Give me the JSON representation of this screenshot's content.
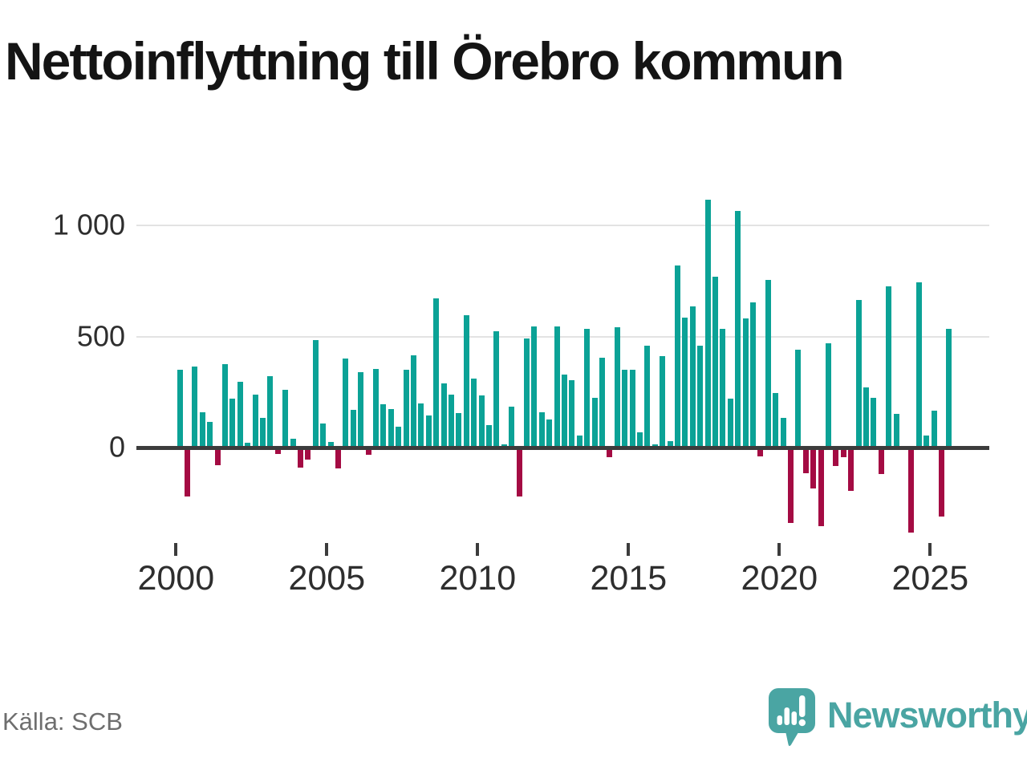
{
  "header": {
    "title": "Nettoinflyttning till Örebro kommun"
  },
  "footer": {
    "source": "Källa: SCB",
    "brand": "Newsworthy"
  },
  "chart_data": {
    "type": "bar",
    "title": "Nettoinflyttning till Örebro kommun",
    "frequency": "quarterly",
    "start_period": "2000-Q1",
    "end_period": "2025-Q3",
    "values": [
      350,
      -210,
      365,
      160,
      115,
      -70,
      375,
      220,
      295,
      20,
      240,
      135,
      320,
      -20,
      260,
      40,
      -80,
      -45,
      485,
      110,
      25,
      -85,
      400,
      170,
      340,
      -25,
      355,
      195,
      175,
      95,
      350,
      415,
      200,
      145,
      670,
      290,
      240,
      155,
      595,
      310,
      235,
      100,
      525,
      15,
      185,
      -210,
      490,
      545,
      160,
      125,
      545,
      330,
      305,
      55,
      535,
      225,
      405,
      -35,
      540,
      350,
      350,
      70,
      460,
      15,
      410,
      30,
      820,
      585,
      635,
      460,
      1115,
      770,
      535,
      220,
      1065,
      580,
      655,
      -30,
      755,
      245,
      135,
      -330,
      440,
      -105,
      -175,
      -345,
      470,
      -75,
      -35,
      -185,
      665,
      270,
      225,
      -110,
      725,
      150,
      0,
      -375,
      745,
      55,
      165,
      -300,
      535
    ],
    "yticks": [
      {
        "value": 0,
        "label": "0"
      },
      {
        "value": 500,
        "label": "500"
      },
      {
        "value": 1000,
        "label": "1 000"
      }
    ],
    "xticks": [
      2000,
      2005,
      2010,
      2015,
      2020,
      2025
    ],
    "ylim": [
      -400,
      1150
    ],
    "grid": "horizontal",
    "legend": "none",
    "color_positive": "#0BA296",
    "color_negative": "#A40B43",
    "axis_color": "#3C3C3C",
    "grid_color": "#E3E3E3",
    "text_color": "#2E2E2E"
  }
}
